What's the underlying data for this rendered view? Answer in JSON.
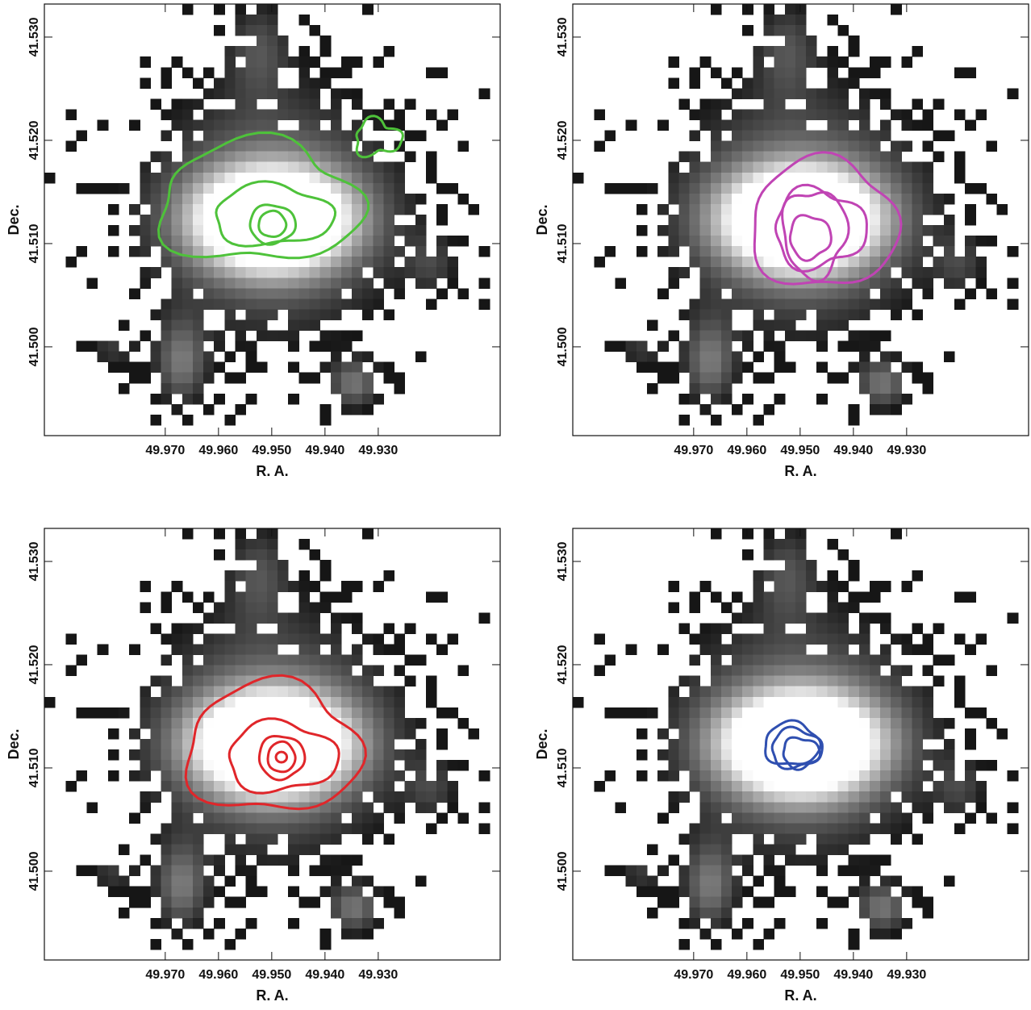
{
  "chart_data": [
    {
      "type": "image",
      "xlabel": "R. A.",
      "ylabel": "Dec.",
      "xlim": [
        49.9927,
        49.9071
      ],
      "ylim": [
        41.4914,
        41.5332
      ],
      "xticks": [
        {
          "value": 49.97,
          "label": "49.970"
        },
        {
          "value": 49.96,
          "label": "49.960"
        },
        {
          "value": 49.95,
          "label": "49.950"
        },
        {
          "value": 49.94,
          "label": "49.940"
        },
        {
          "value": 49.93,
          "label": "49.930"
        }
      ],
      "yticks": [
        {
          "value": 41.5,
          "label": "41.500"
        },
        {
          "value": 41.51,
          "label": "41.510"
        },
        {
          "value": 41.52,
          "label": "41.520"
        },
        {
          "value": 41.53,
          "label": "41.530"
        }
      ],
      "contour_color": "#4ec23a"
    },
    {
      "type": "image",
      "xlabel": "R. A.",
      "ylabel": "Dec.",
      "xlim": [
        49.9927,
        49.9071
      ],
      "ylim": [
        41.4914,
        41.5332
      ],
      "xticks": [
        {
          "value": 49.97,
          "label": "49.970"
        },
        {
          "value": 49.96,
          "label": "49.960"
        },
        {
          "value": 49.95,
          "label": "49.950"
        },
        {
          "value": 49.94,
          "label": "49.940"
        },
        {
          "value": 49.93,
          "label": "49.930"
        }
      ],
      "yticks": [
        {
          "value": 41.5,
          "label": "41.500"
        },
        {
          "value": 41.51,
          "label": "41.510"
        },
        {
          "value": 41.52,
          "label": "41.520"
        },
        {
          "value": 41.53,
          "label": "41.530"
        }
      ],
      "contour_color": "#c044b4"
    },
    {
      "type": "image",
      "xlabel": "R. A.",
      "ylabel": "Dec.",
      "xlim": [
        49.9927,
        49.9071
      ],
      "ylim": [
        41.4914,
        41.5332
      ],
      "xticks": [
        {
          "value": 49.97,
          "label": "49.970"
        },
        {
          "value": 49.96,
          "label": "49.960"
        },
        {
          "value": 49.95,
          "label": "49.950"
        },
        {
          "value": 49.94,
          "label": "49.940"
        },
        {
          "value": 49.93,
          "label": "49.930"
        }
      ],
      "yticks": [
        {
          "value": 41.5,
          "label": "41.500"
        },
        {
          "value": 41.51,
          "label": "41.510"
        },
        {
          "value": 41.52,
          "label": "41.520"
        },
        {
          "value": 41.53,
          "label": "41.530"
        }
      ],
      "contour_color": "#e0262a"
    },
    {
      "type": "image",
      "xlabel": "R. A.",
      "ylabel": "Dec.",
      "xlim": [
        49.9927,
        49.9071
      ],
      "ylim": [
        41.4914,
        41.5332
      ],
      "xticks": [
        {
          "value": 49.97,
          "label": "49.970"
        },
        {
          "value": 49.96,
          "label": "49.960"
        },
        {
          "value": 49.95,
          "label": "49.950"
        },
        {
          "value": 49.94,
          "label": "49.940"
        },
        {
          "value": 49.93,
          "label": "49.930"
        }
      ],
      "yticks": [
        {
          "value": 41.5,
          "label": "41.500"
        },
        {
          "value": 41.51,
          "label": "41.510"
        },
        {
          "value": 41.52,
          "label": "41.520"
        },
        {
          "value": 41.53,
          "label": "41.530"
        }
      ],
      "contour_color": "#2f4fb0"
    }
  ]
}
